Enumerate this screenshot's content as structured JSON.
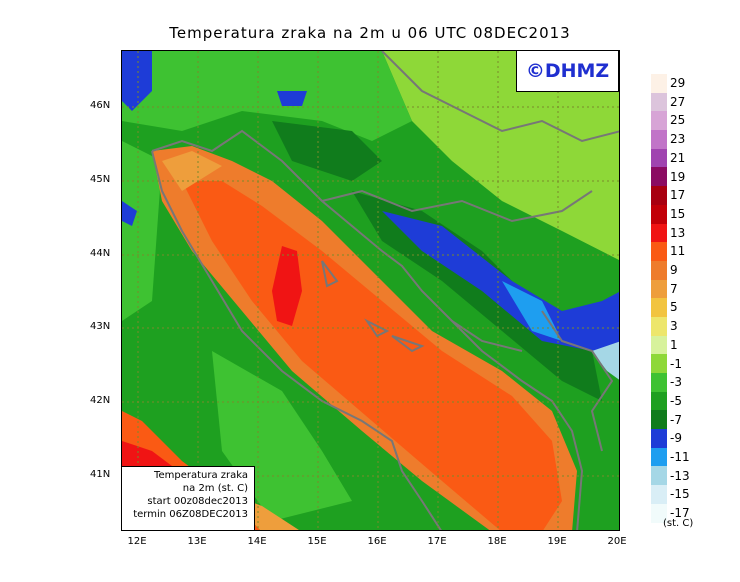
{
  "title": "Temperatura zraka na 2m u 06 UTC 08DEC2013",
  "logo": "©DHMZ",
  "info_box": {
    "line1": "Temperatura zraka",
    "line2": "na 2m (st. C)",
    "line3": "start 00z08dec2013",
    "line4": "termin 06Z08DEC2013"
  },
  "lat_labels": [
    "46N",
    "45N",
    "44N",
    "43N",
    "42N",
    "41N"
  ],
  "lon_labels": [
    "12E",
    "13E",
    "14E",
    "15E",
    "16E",
    "17E",
    "18E",
    "19E",
    "20E"
  ],
  "legend": {
    "unit": "(st. C)",
    "labels": [
      "29",
      "27",
      "25",
      "23",
      "21",
      "19",
      "17",
      "15",
      "13",
      "11",
      "9",
      "7",
      "5",
      "3",
      "1",
      "-1",
      "-3",
      "-5",
      "-7",
      "-9",
      "-11",
      "-13",
      "-15",
      "-17"
    ],
    "colors": [
      "#fdf1e6",
      "#dcc4dc",
      "#d7a4d6",
      "#c174c8",
      "#a044b0",
      "#8b0b62",
      "#a80010",
      "#c20008",
      "#f01414",
      "#fa5a14",
      "#ee7c2c",
      "#ee9e3c",
      "#f2c440",
      "#ede66c",
      "#d7f29c",
      "#8ed838",
      "#3ec232",
      "#1ea020",
      "#107c1c",
      "#1e3cd7",
      "#1e9ef0",
      "#a5d7e6",
      "#d9eef6",
      "#f1fbfb"
    ]
  }
}
